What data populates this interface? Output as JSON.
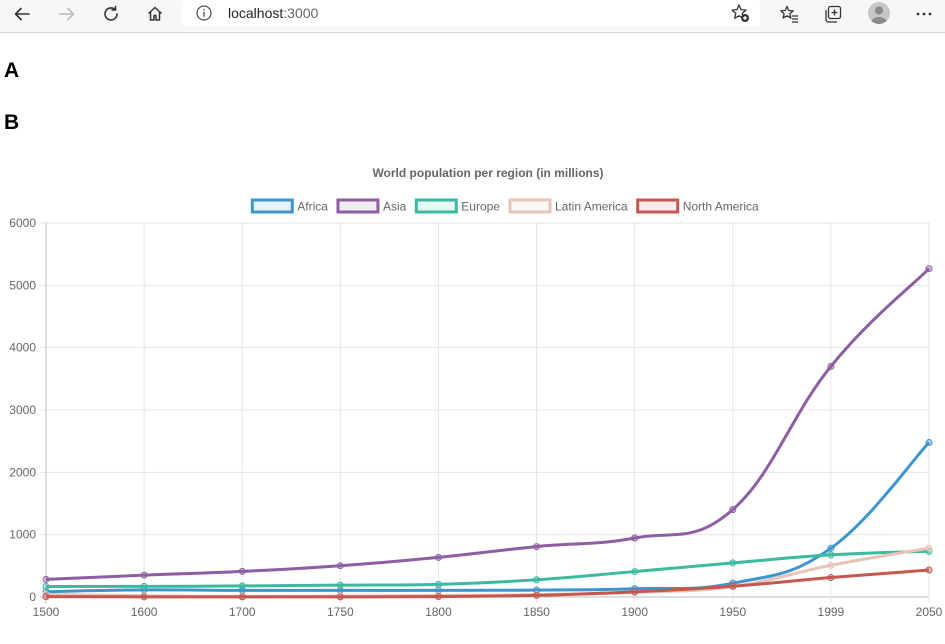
{
  "browser": {
    "url_host": "localhost",
    "url_port": ":3000",
    "icons": [
      "back-arrow-icon",
      "forward-arrow-icon",
      "refresh-icon",
      "home-icon",
      "info-icon",
      "add-favorite-icon",
      "favorites-icon",
      "collections-icon",
      "profile-icon",
      "more-icon"
    ]
  },
  "page": {
    "heading_a": "A",
    "heading_b": "B"
  },
  "colors": {
    "Africa": "#3e95cd",
    "Asia": "#8e5ea2",
    "Europe": "#3cba9f",
    "Latin America": "#e8c3b9",
    "North America": "#c45850"
  },
  "chart_data": {
    "type": "line",
    "title": "World population per region (in millions)",
    "x": [
      "1500",
      "1600",
      "1700",
      "1750",
      "1800",
      "1850",
      "1900",
      "1950",
      "1999",
      "2050"
    ],
    "ylim": [
      0,
      6000
    ],
    "yticks": [
      0,
      1000,
      2000,
      3000,
      4000,
      5000,
      6000
    ],
    "grid": true,
    "legend": "top",
    "series": [
      {
        "name": "Africa",
        "values": [
          86,
          114,
          106,
          106,
          107,
          111,
          133,
          221,
          783,
          2478
        ]
      },
      {
        "name": "Asia",
        "values": [
          282,
          350,
          411,
          502,
          635,
          809,
          947,
          1402,
          3700,
          5267
        ]
      },
      {
        "name": "Europe",
        "values": [
          168,
          170,
          178,
          190,
          203,
          276,
          408,
          547,
          675,
          734
        ]
      },
      {
        "name": "Latin America",
        "values": [
          40,
          20,
          10,
          16,
          24,
          38,
          74,
          167,
          508,
          784
        ]
      },
      {
        "name": "North America",
        "values": [
          6,
          3,
          2,
          2,
          7,
          26,
          82,
          172,
          312,
          433
        ]
      }
    ]
  }
}
